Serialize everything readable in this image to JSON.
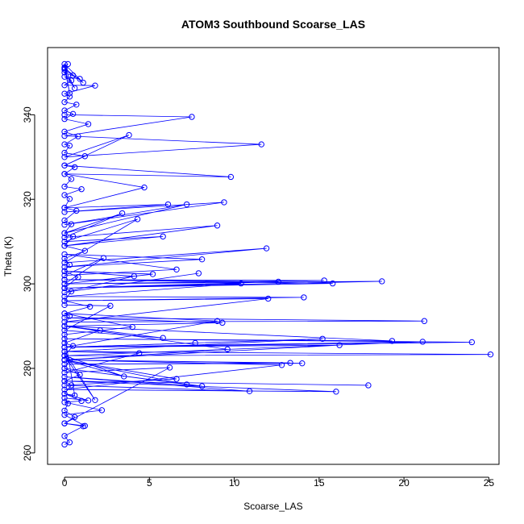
{
  "chart_data": {
    "type": "scatter",
    "title": "ATOM3 Southbound Scoarse_LAS",
    "xlabel": "Scoarse_LAS",
    "ylabel": "Theta (K)",
    "xlim": [
      -1.0,
      25.6
    ],
    "ylim": [
      257.3,
      355.9
    ],
    "xticks": [
      0,
      5,
      10,
      15,
      20,
      25
    ],
    "yticks": [
      260,
      280,
      300,
      320,
      340
    ],
    "grid": false,
    "legend": "none",
    "color": "#0000ff",
    "marker": "open-circle",
    "connected": true,
    "series": [
      {
        "x": [
          0,
          0.3,
          0,
          1.1,
          0,
          0.6,
          0,
          0.2,
          0,
          1.4,
          0,
          0.4,
          0,
          0.9,
          0,
          0.3,
          0,
          0.5,
          0,
          2.1,
          0,
          0.3,
          0,
          1.5,
          0,
          0.4,
          0,
          0.8,
          0,
          0.3,
          0,
          1.2,
          0,
          0.5,
          0,
          0.4,
          0,
          0.7,
          0,
          0.3,
          0,
          1.0,
          0,
          0.4,
          0,
          0.6,
          0,
          1.2,
          0,
          0.3,
          0,
          0.8,
          0,
          1.4,
          0,
          0.5,
          0,
          0.7,
          0,
          0.3,
          0,
          1.8,
          0,
          0.4,
          0,
          0.9,
          0,
          0.6,
          0,
          1.1,
          0,
          0.3,
          0,
          0.5,
          0,
          0.2
        ],
        "y": [
          262,
          262.5,
          264,
          266.3,
          267,
          268.5,
          270,
          271.7,
          273,
          272.4,
          274,
          276,
          277,
          278.5,
          280,
          282,
          283,
          285.3,
          286,
          289,
          290,
          292.4,
          293,
          294.6,
          296,
          298.2,
          299,
          301.6,
          303,
          304.5,
          306,
          307.8,
          309,
          311.2,
          312,
          314.1,
          315,
          317.3,
          318,
          320.1,
          321,
          322.4,
          323,
          324.8,
          326,
          327.6,
          328,
          330.2,
          331,
          332.7,
          333,
          334.9,
          336,
          337.8,
          339,
          340.2,
          341,
          342.4,
          343,
          344.3,
          345,
          346.9,
          347,
          348.1,
          349,
          348.5,
          350,
          346.3,
          351,
          347.6,
          352,
          345.1,
          351.2,
          349.3,
          350.7,
          352
        ]
      },
      {
        "x": [
          0,
          7.5,
          0,
          11.6,
          0,
          3.8,
          0,
          9.8,
          0,
          4.7,
          0,
          6.1,
          0,
          9.4,
          0,
          7.2,
          0,
          3.4,
          0,
          9.0,
          0,
          5.8,
          0,
          4.3,
          0,
          11.9,
          0,
          8.1,
          0,
          6.6,
          0,
          2.3,
          0,
          5.2,
          0,
          4.1,
          0,
          7.9
        ],
        "y": [
          340,
          339.5,
          335,
          333,
          330,
          335.2,
          328,
          325.3,
          326,
          322.8,
          318,
          318.8,
          317,
          319.3,
          314,
          318.8,
          312,
          316.7,
          311,
          313.8,
          309,
          311.2,
          310,
          315.3,
          305,
          308.4,
          304,
          305.8,
          307,
          303.4,
          302,
          306.1,
          300,
          302.3,
          303,
          301.8,
          298,
          302.5
        ]
      },
      {
        "x": [
          0,
          15.3,
          0,
          18.7,
          0,
          12.6,
          0,
          15.8,
          0,
          10.4,
          0,
          14.1,
          0,
          12.0,
          0,
          21.2,
          0,
          9.3,
          0,
          19.3,
          0,
          24.0,
          0,
          21.1,
          0,
          25.1,
          0,
          15.2,
          0,
          16.2,
          0,
          14.0,
          0,
          13.3,
          0,
          12.8,
          0,
          16.0,
          0,
          17.9
        ],
        "y": [
          301,
          300.8,
          300,
          300.6,
          299,
          300.5,
          301,
          300.1,
          299,
          300.1,
          297,
          296.8,
          296,
          296.5,
          291,
          291.2,
          292,
          290.8,
          290,
          286.5,
          287,
          286.2,
          285,
          286.3,
          283,
          283.3,
          284,
          287.0,
          285,
          285.5,
          282,
          281.2,
          281,
          281.3,
          282,
          280.8,
          275,
          274.5,
          277,
          276.0
        ]
      },
      {
        "x": [
          0,
          2.7,
          0,
          5.8,
          0,
          9.6,
          0,
          6.6,
          0,
          10.9,
          0,
          8.1,
          0,
          7.2,
          0,
          3.5,
          0,
          1.8,
          0,
          4.4,
          0,
          6.2,
          0,
          1.2,
          0,
          2.2,
          0,
          1.0,
          0,
          0.6,
          0,
          4.0,
          0,
          9.0,
          0,
          7.7
        ],
        "y": [
          295,
          294.8,
          289,
          287.2,
          290,
          284.5,
          282,
          277.5,
          276,
          274.6,
          278,
          275.8,
          280,
          276.2,
          282,
          278.1,
          283,
          272.5,
          284,
          283.6,
          279,
          280.2,
          267,
          266.4,
          269,
          270.1,
          272,
          272.3,
          274,
          273.6,
          288,
          289.8,
          293,
          291.2,
          285,
          286.0
        ]
      }
    ]
  }
}
